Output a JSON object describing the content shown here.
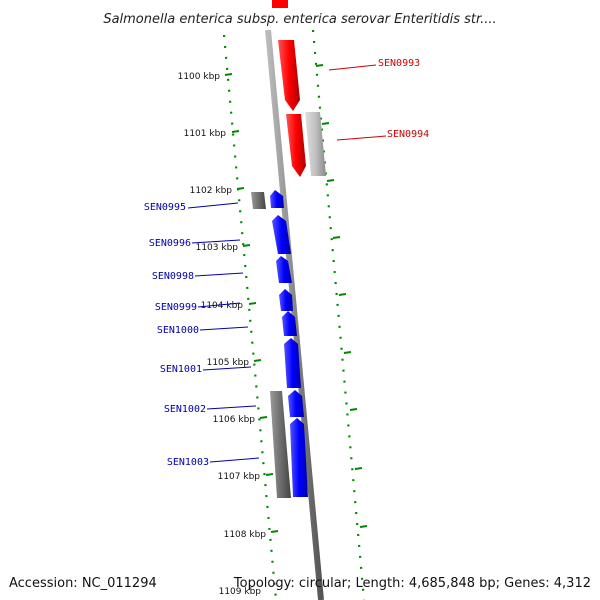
{
  "title": "Salmonella enterica subsp. enterica serovar Enteritidis str....",
  "footer": {
    "accession": "Accession: NC_011294",
    "topology": "Topology: circular; Length: 4,685,848 bp; Genes: 4,312"
  },
  "colors": {
    "forward_strand": "#ff0000",
    "reverse_strand": "#0000ff",
    "forward_label": "#cc0000",
    "reverse_label": "#0000aa",
    "unlabeled_gray": "#777777",
    "tick_green": "#008800",
    "backbone": "#888888"
  },
  "ruler": {
    "unit": "kbp",
    "ticks": [
      "1100 kbp",
      "1101 kbp",
      "1102 kbp",
      "1103 kbp",
      "1104 kbp",
      "1105 kbp",
      "1106 kbp",
      "1107 kbp",
      "1108 kbp",
      "1109 kbp"
    ]
  },
  "genes": [
    {
      "name": "SEN0993",
      "strand": "forward"
    },
    {
      "name": "SEN0994",
      "strand": "forward"
    },
    {
      "name": "SEN0995",
      "strand": "reverse"
    },
    {
      "name": "SEN0996",
      "strand": "reverse"
    },
    {
      "name": "SEN0998",
      "strand": "reverse"
    },
    {
      "name": "SEN0999",
      "strand": "reverse"
    },
    {
      "name": "SEN1000",
      "strand": "reverse"
    },
    {
      "name": "SEN1001",
      "strand": "reverse"
    },
    {
      "name": "SEN1002",
      "strand": "reverse"
    },
    {
      "name": "SEN1003",
      "strand": "reverse"
    }
  ]
}
